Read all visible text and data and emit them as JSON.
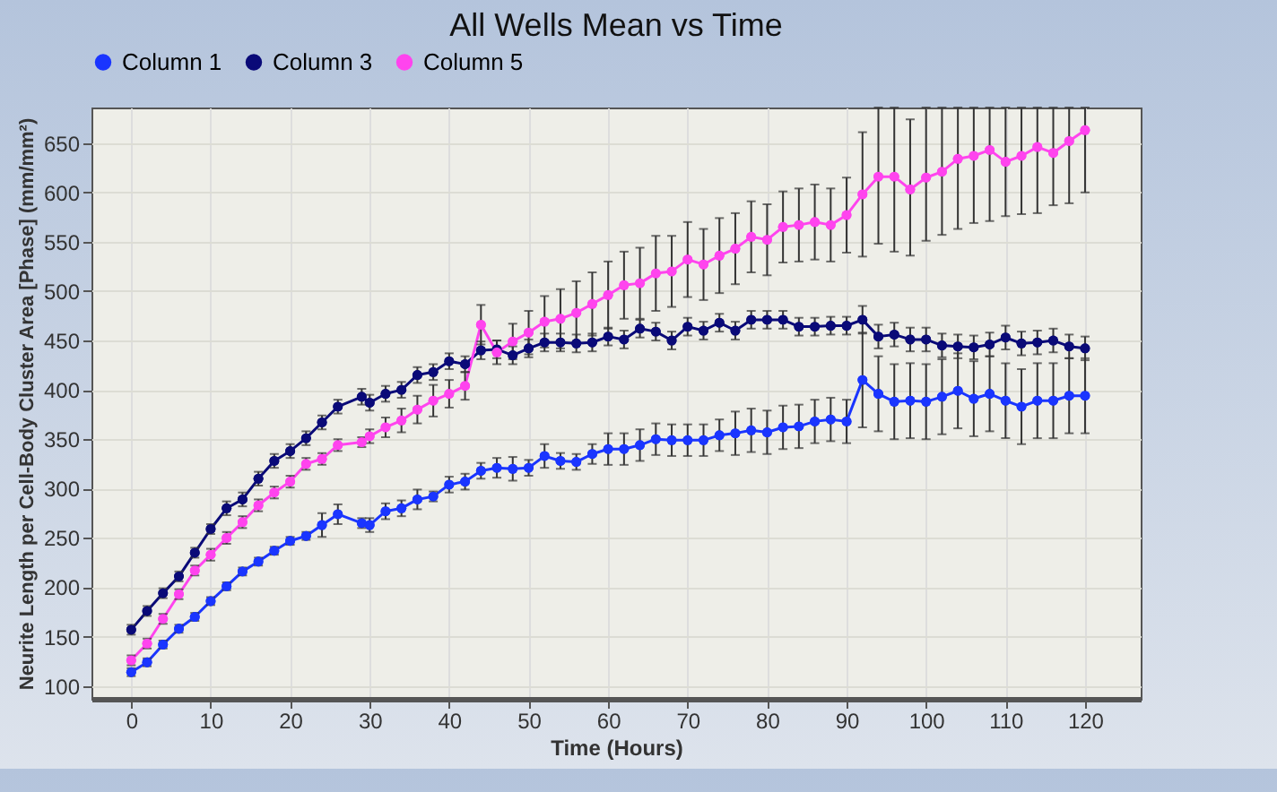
{
  "chart_data": {
    "type": "line",
    "title": "All Wells Mean vs Time",
    "xlabel": "Time (Hours)",
    "ylabel": "Neurite Length per Cell-Body Cluster Area [Phase] (mm/mm²)",
    "x": [
      0,
      2,
      4,
      6,
      8,
      10,
      12,
      14,
      16,
      18,
      20,
      22,
      24,
      26,
      29,
      30,
      32,
      34,
      36,
      38,
      40,
      42,
      44,
      46,
      48,
      50,
      52,
      54,
      56,
      58,
      60,
      62,
      64,
      66,
      68,
      70,
      72,
      74,
      76,
      78,
      80,
      82,
      84,
      86,
      88,
      90,
      92,
      94,
      96,
      98,
      100,
      102,
      104,
      106,
      108,
      110,
      112,
      114,
      116,
      118,
      120
    ],
    "series": [
      {
        "name": "Column 1",
        "color": "#1a35ff",
        "values": [
          114,
          124,
          142,
          158,
          170,
          186,
          201,
          216,
          226,
          237,
          247,
          252,
          263,
          274,
          265,
          263,
          277,
          280,
          289,
          292,
          304,
          307,
          318,
          321,
          320,
          321,
          333,
          328,
          327,
          335,
          340,
          340,
          344,
          350,
          349,
          349,
          349,
          354,
          356,
          359,
          357,
          362,
          363,
          368,
          370,
          368,
          410,
          396,
          388,
          389,
          388,
          393,
          399,
          391,
          396,
          389,
          383,
          389,
          389,
          394,
          394
        ],
        "errors": [
          4,
          4,
          4,
          4,
          4,
          4,
          4,
          4,
          4,
          4,
          4,
          4,
          12,
          10,
          5,
          7,
          8,
          8,
          10,
          5,
          8,
          8,
          8,
          10,
          12,
          8,
          12,
          8,
          8,
          10,
          16,
          16,
          16,
          16,
          16,
          16,
          16,
          16,
          22,
          22,
          22,
          22,
          22,
          22,
          22,
          22,
          48,
          38,
          38,
          38,
          38,
          38,
          38,
          38,
          38,
          38,
          38,
          38,
          38,
          38,
          38
        ]
      },
      {
        "name": "Column 3",
        "color": "#0a0a78",
        "values": [
          157,
          176,
          194,
          211,
          235,
          259,
          280,
          289,
          310,
          328,
          338,
          351,
          367,
          383,
          393,
          387,
          396,
          400,
          415,
          418,
          429,
          426,
          440,
          441,
          435,
          442,
          448,
          448,
          447,
          448,
          454,
          451,
          462,
          459,
          450,
          464,
          460,
          468,
          460,
          471,
          471,
          471,
          464,
          464,
          465,
          465,
          471,
          454,
          456,
          451,
          451,
          445,
          444,
          443,
          446,
          453,
          447,
          448,
          450,
          444,
          442
        ],
        "errors": [
          5,
          5,
          5,
          5,
          5,
          5,
          7,
          7,
          7,
          7,
          7,
          7,
          7,
          7,
          8,
          8,
          8,
          8,
          8,
          8,
          8,
          8,
          9,
          9,
          9,
          9,
          9,
          9,
          9,
          9,
          9,
          9,
          9,
          9,
          9,
          9,
          9,
          9,
          9,
          9,
          9,
          9,
          9,
          9,
          9,
          9,
          14,
          12,
          12,
          12,
          12,
          12,
          12,
          12,
          12,
          12,
          12,
          12,
          12,
          12,
          12
        ]
      },
      {
        "name": "Column 5",
        "color": "#ff44ee",
        "values": [
          126,
          143,
          168,
          193,
          217,
          233,
          250,
          266,
          283,
          296,
          307,
          325,
          330,
          344,
          347,
          353,
          362,
          369,
          380,
          389,
          396,
          404,
          466,
          438,
          449,
          458,
          469,
          472,
          478,
          487,
          496,
          506,
          508,
          518,
          520,
          532,
          527,
          536,
          543,
          555,
          552,
          565,
          567,
          570,
          567,
          577,
          598,
          616,
          616,
          603,
          615,
          621,
          634,
          637,
          643,
          631,
          637,
          646,
          640,
          652,
          663
        ],
        "errors": [
          5,
          5,
          5,
          5,
          5,
          6,
          6,
          6,
          6,
          6,
          6,
          6,
          6,
          6,
          5,
          7,
          10,
          12,
          14,
          16,
          14,
          14,
          20,
          12,
          18,
          22,
          26,
          30,
          32,
          32,
          34,
          34,
          36,
          38,
          36,
          38,
          36,
          38,
          36,
          36,
          36,
          36,
          37,
          38,
          37,
          38,
          63,
          [
            548,
            686
          ],
          [
            540,
            686
          ],
          [
            536,
            674
          ],
          [
            551,
            686
          ],
          [
            557,
            686
          ],
          [
            563,
            686
          ],
          [
            569,
            686
          ],
          [
            571,
            686
          ],
          [
            576,
            686
          ],
          [
            578,
            686
          ],
          [
            579,
            686
          ],
          [
            587,
            686
          ],
          [
            589,
            686
          ],
          [
            600,
            686
          ]
        ]
      }
    ],
    "xlim": [
      -5,
      127
    ],
    "ylim": [
      87,
      686
    ],
    "xticks": [
      0,
      10,
      20,
      30,
      40,
      50,
      60,
      70,
      80,
      90,
      100,
      110,
      120
    ],
    "yticks": [
      100,
      150,
      200,
      250,
      300,
      350,
      400,
      450,
      500,
      550,
      600,
      650
    ],
    "grid": true,
    "legend": "top left",
    "marker": "circle",
    "line_style": "solid"
  }
}
